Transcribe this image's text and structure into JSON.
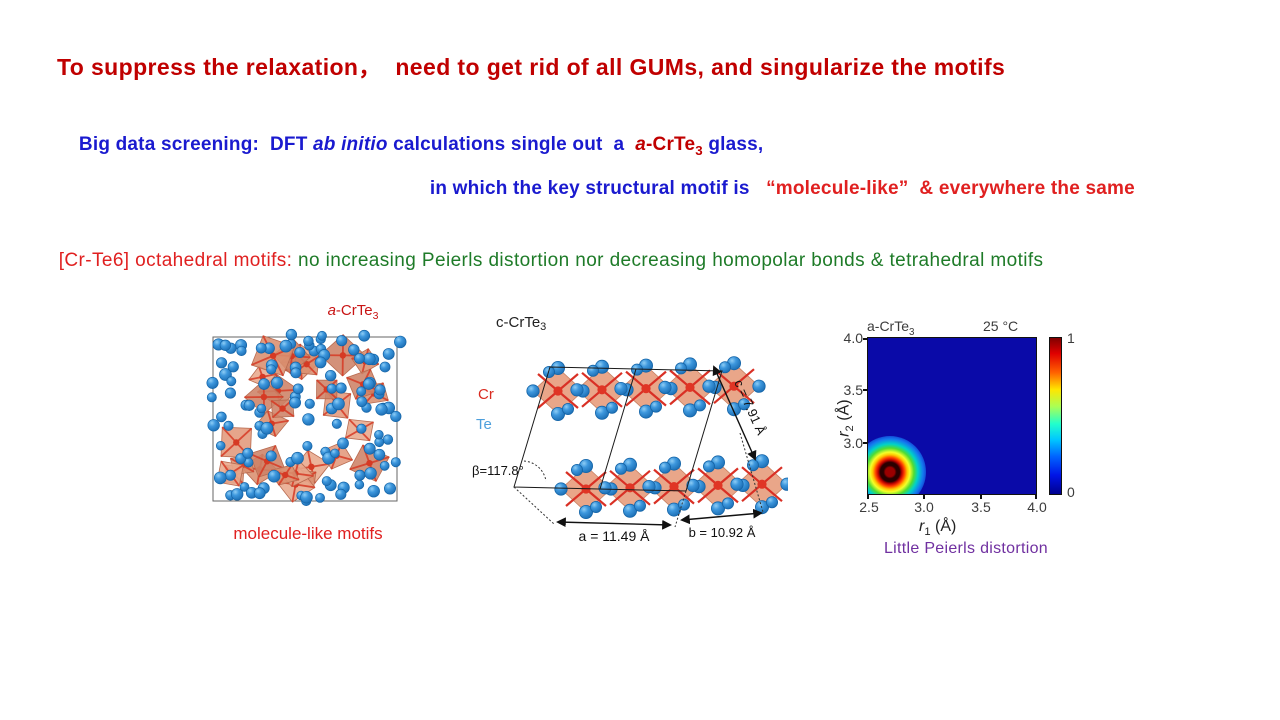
{
  "slide": {
    "title": "To suppress the relaxation，  need to get rid of all GUMs, and singularize the motifs",
    "line2": {
      "prefix": "Big data screening:  DFT ",
      "italic": "ab initio",
      "middle": " calculations single out  a  ",
      "formula_a": "a",
      "formula_main": "-CrTe",
      "formula_sub": "3",
      "suffix": " glass,"
    },
    "line3": {
      "blue": "in which the key structural motif is   ",
      "red": "“molecule-like”  & everywhere the same"
    },
    "line4": {
      "red": "[Cr-Te6] octahedral motifs: ",
      "green": "no increasing Peierls distortion nor decreasing homopolar bonds & tetrahedral motifs"
    }
  },
  "figures": {
    "amorphous": {
      "label_a": "a",
      "label_main": "-CrTe",
      "label_sub": "3",
      "caption": "molecule-like motifs"
    },
    "crystal": {
      "label_main": "c-CrTe",
      "label_sub": "3",
      "legend_cr": "Cr",
      "legend_te": "Te",
      "beta": "β=117.8°",
      "a_dim": "a = 11.49 Å",
      "b_dim": "b = 10.92 Å",
      "c_dim": "c = 7.91 Å"
    },
    "heatmap": {
      "title_left_main": "a-CrTe",
      "title_left_sub": "3",
      "title_right": "25 °C",
      "xlabel_var": "r",
      "xlabel_sub": "1",
      "xlabel_unit": " (Å)",
      "ylabel_var": "r",
      "ylabel_sub": "2",
      "ylabel_unit": " (Å)",
      "xticks": [
        "2.5",
        "3.0",
        "3.5",
        "4.0"
      ],
      "yticks": [
        "4.0",
        "3.5",
        "3.0"
      ],
      "cbar_max": "1",
      "cbar_min": "0",
      "caption": "Little Peierls distortion"
    }
  },
  "colors": {
    "title_red": "#C00000",
    "statement_blue": "#1A1ACF",
    "bright_red": "#E02020",
    "green": "#1E7B28",
    "purple": "#7030A0",
    "cr_red": "#D92B20",
    "te_blue": "#2D8FD6",
    "octahedron_salmon": "#E8A183",
    "heatmap_background": "#0A0AA8"
  },
  "chart_data": {
    "type": "heatmap",
    "title": "a-CrTe3 pair-distance correlation map at 25 °C",
    "xlabel": "r1 (Å)",
    "ylabel": "r2 (Å)",
    "xlim": [
      2.5,
      4.0
    ],
    "ylim": [
      2.5,
      4.0
    ],
    "xticks": [
      2.5,
      3.0,
      3.5,
      4.0
    ],
    "yticks": [
      2.5,
      3.0,
      3.5,
      4.0
    ],
    "colormap": "jet",
    "colorbar_range": [
      0,
      1
    ],
    "peaks": [
      {
        "r1": 2.7,
        "r2": 2.7,
        "value": 1.0
      }
    ],
    "background_value": 0
  }
}
